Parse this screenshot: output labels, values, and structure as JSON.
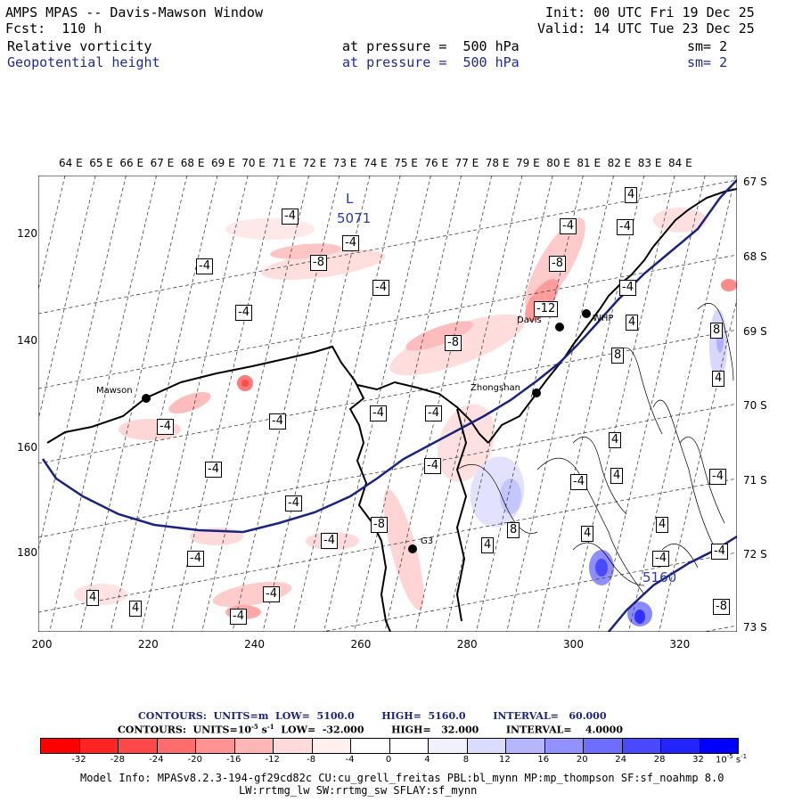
{
  "header": {
    "title": "AMPS MPAS -- Davis-Mawson Window",
    "fcst": "Fcst:  110 h",
    "init": "Init: 00 UTC Fri 19 Dec 25",
    "valid": "Valid: 14 UTC Tue 23 Dec 25",
    "field1": "Relative vorticity",
    "field1_level": "at pressure =  500 hPa",
    "field1_sm": "sm= 2",
    "field2": "Geopotential height",
    "field2_level": "at pressure =  500 hPa",
    "field2_sm": "sm= 2"
  },
  "lon_labels": [
    "64 E",
    "65 E",
    "66 E",
    "67 E",
    "68 E",
    "69 E",
    "70 E",
    "71 E",
    "72 E",
    "73 E",
    "74 E",
    "75 E",
    "76 E",
    "77 E",
    "78 E",
    "79 E",
    "80 E",
    "81 E",
    "82 E",
    "83 E",
    "84 E"
  ],
  "lat_labels": [
    "67 S",
    "68 S",
    "69 S",
    "70 S",
    "71 S",
    "72 S",
    "73 S"
  ],
  "y_axis_ticks": [
    "120",
    "140",
    "160",
    "180"
  ],
  "x_axis_ticks": [
    "200",
    "220",
    "240",
    "260",
    "280",
    "300",
    "320"
  ],
  "stations": [
    "Mawson",
    "Davis",
    "WHP",
    "Zhongshan",
    "G3"
  ],
  "height_labels": {
    "low_symbol": "L",
    "low_value": "5071",
    "mid_value": "5160"
  },
  "contour_labels": [
    "-4",
    "-4",
    "-4",
    "-8",
    "-4",
    "-4",
    "-4",
    "-4",
    "-4",
    "-8",
    "-12",
    "-8",
    "-4",
    "-4",
    "4",
    "4",
    "8",
    "-4",
    "-4",
    "-4",
    "-4",
    "-4",
    "-4",
    "-8",
    "-4",
    "-4",
    "-4",
    "4",
    "4",
    "-4",
    "8",
    "-4",
    "4",
    "8",
    "4",
    "-4",
    "-4",
    "4",
    "-8",
    "4",
    "4",
    "4"
  ],
  "legend": {
    "line1": "CONTOURS:  UNITS=m  LOW=  5100.0        HIGH=  5160.0        INTERVAL=   60.000",
    "line2_a": "CONTOURS:  UNITS=10",
    "line2_exp": "-5",
    "line2_b": " s",
    "line2_exp2": "-1",
    "line2_c": "  LOW=  -32.000        HIGH=   32.000        INTERVAL=    4.0000",
    "colorbar_ticks": [
      "-32",
      "-28",
      "-24",
      "-20",
      "-16",
      "-12",
      "-8",
      "-4",
      "0",
      "4",
      "8",
      "12",
      "16",
      "20",
      "24",
      "28",
      "32"
    ],
    "colorbar_unit": "10",
    "colorbar_unit_exp": "-5",
    "colorbar_unit_s": " s",
    "colorbar_unit_exp2": "-1",
    "colors": [
      "#ff0000",
      "#ff2424",
      "#ff4949",
      "#ff6d6d",
      "#ff9292",
      "#ffb6b6",
      "#ffdbdb",
      "#fff0f0",
      "#ffffff",
      "#ffffff",
      "#f0f0ff",
      "#dbdbff",
      "#b6b6ff",
      "#9292ff",
      "#6d6dff",
      "#4949ff",
      "#2424ff",
      "#0000ff"
    ]
  },
  "footer": {
    "line1": "Model Info: MPASv8.2.3-194-gf29cd82c CU:cu_grell_freitas PBL:bl_mynn MP:mp_thompson SF:sf_noahmp 8.0",
    "line2": "LW:rrtmg_lw SW:rrtmg_sw SFLAY:sf_mynn"
  }
}
